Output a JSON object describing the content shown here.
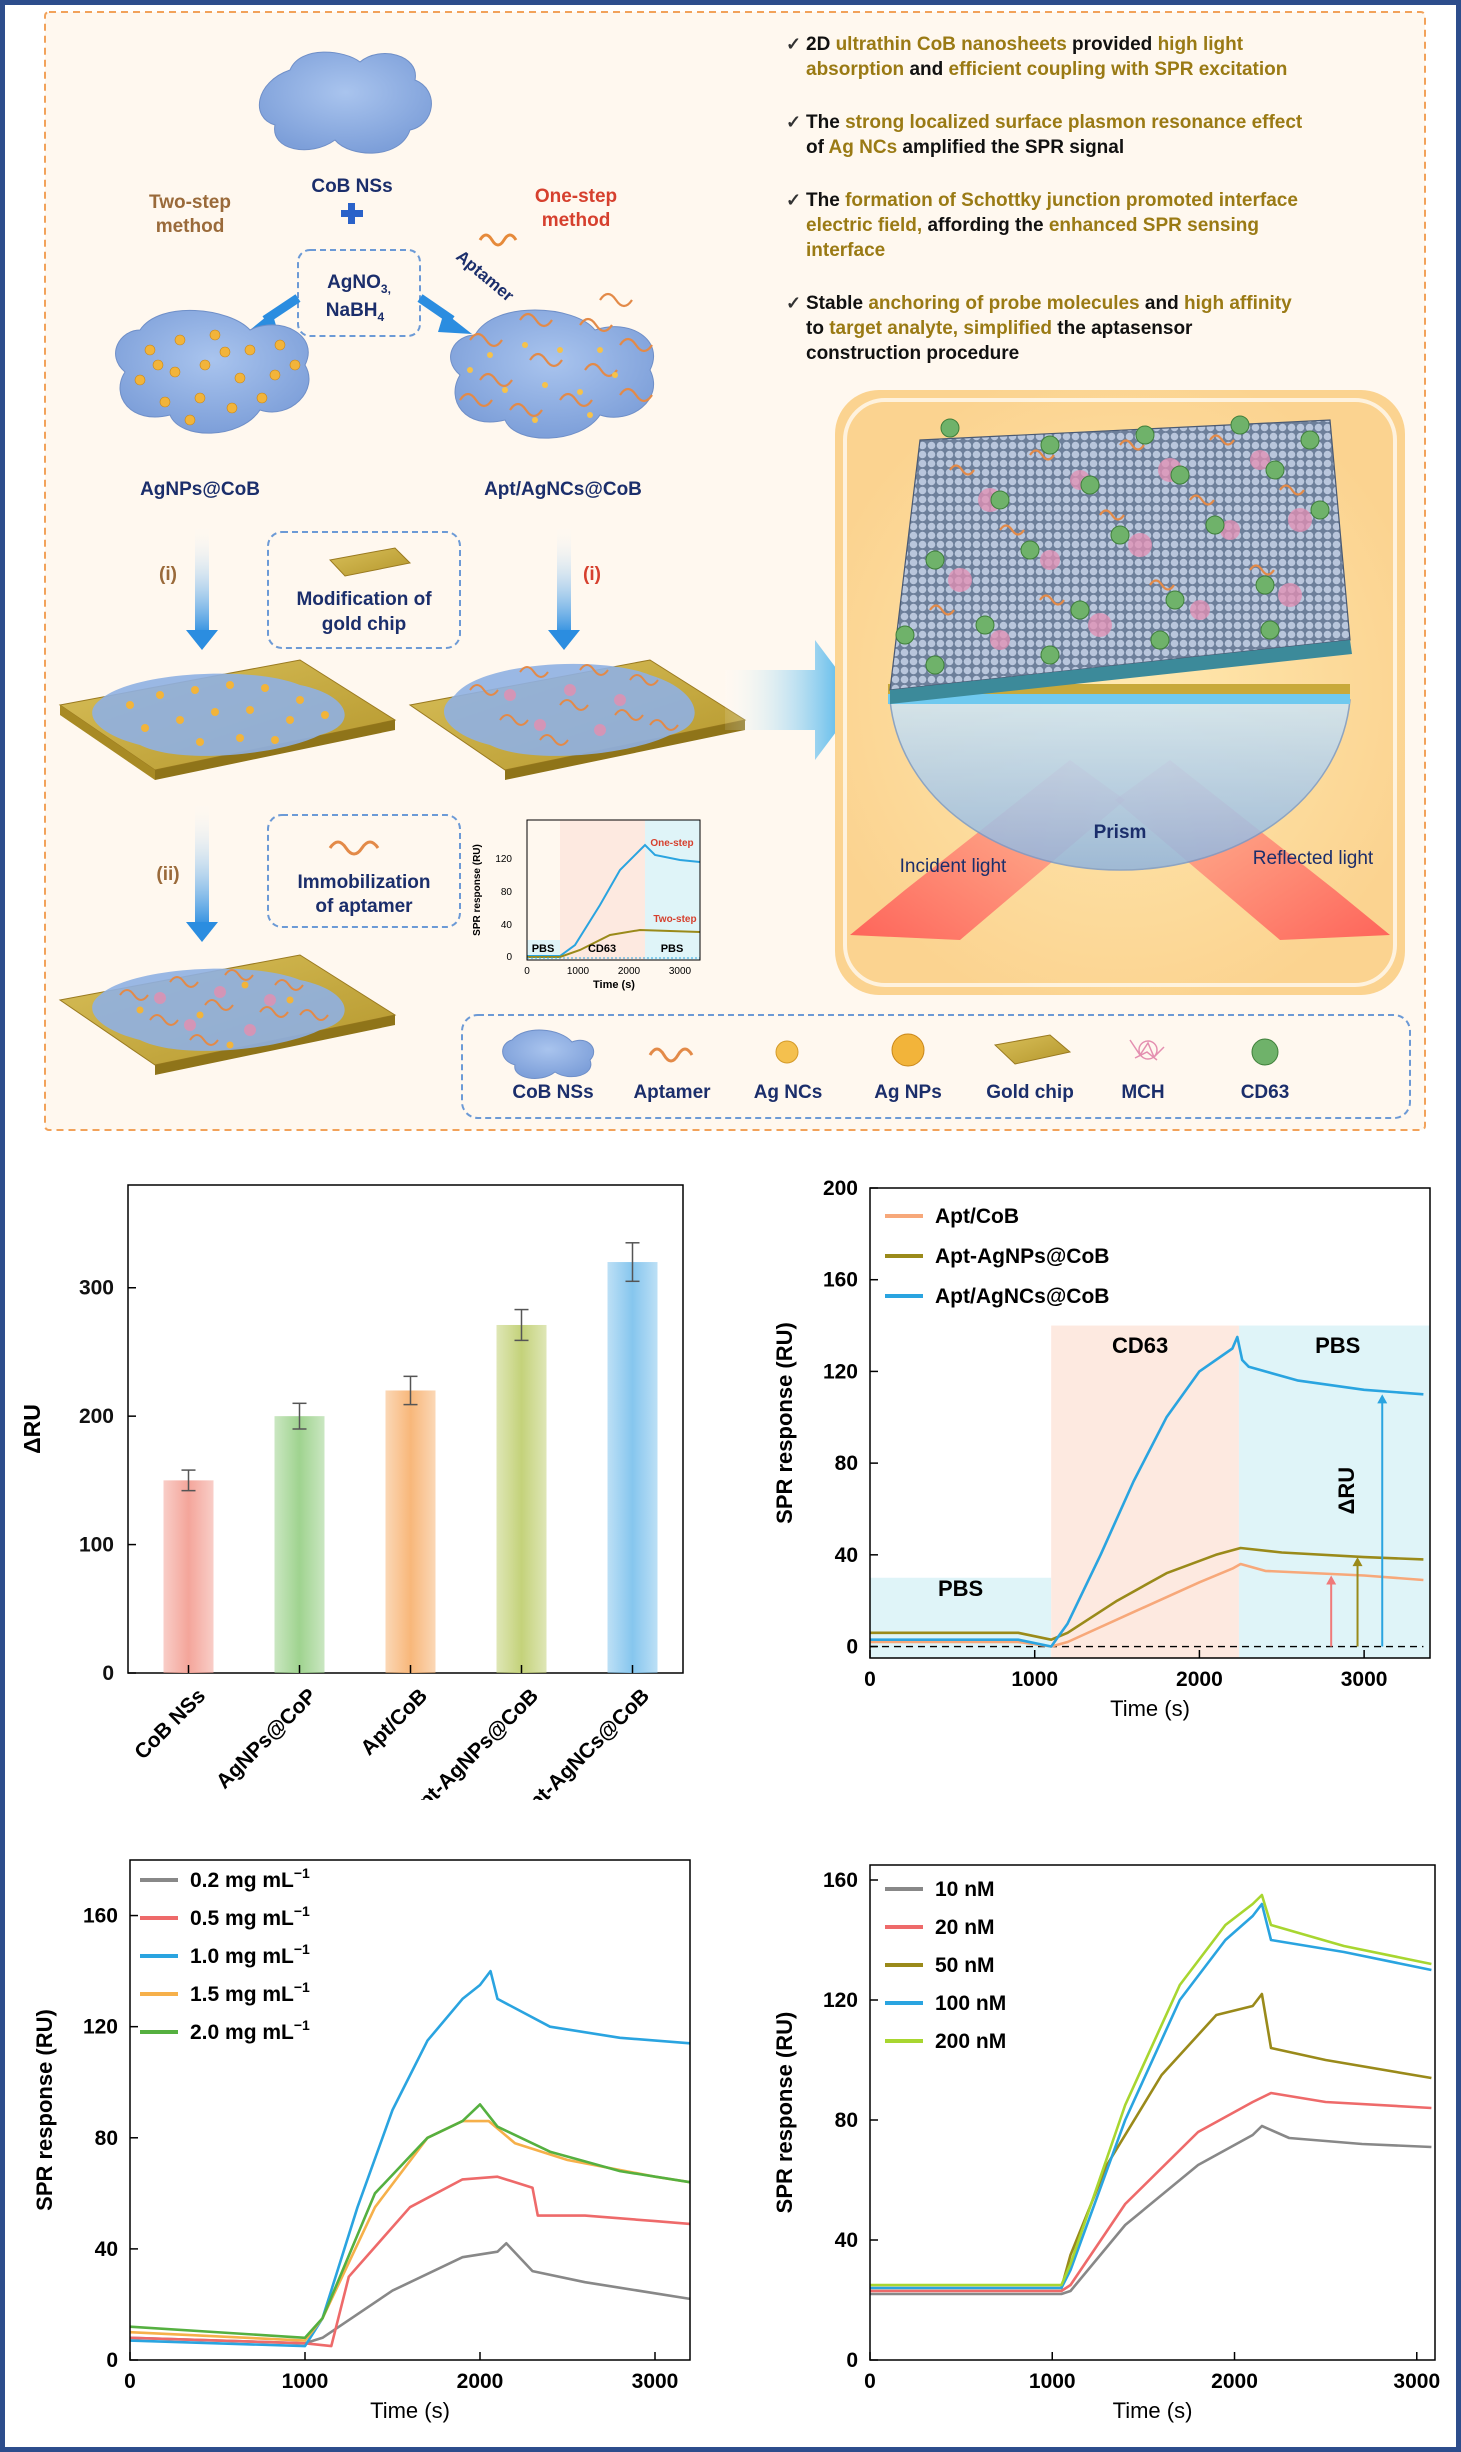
{
  "schematic": {
    "labels": {
      "cob_ns": "CoB NSs",
      "two_step_line1": "Two-step",
      "two_step_line2": "method",
      "one_step_line1": "One-step",
      "one_step_line2": "method",
      "reagent_line1": "AgNO",
      "reagent_sub1": "3,",
      "reagent_line2": "NaBH",
      "reagent_sub2": "4",
      "aptamer_arrow": "Aptamer",
      "agnps_cob": "AgNPs@CoB",
      "apt_agncs_cob": "Apt/AgNCs@CoB",
      "step_i_left": "(i)",
      "step_i_right": "(i)",
      "step_ii": "(ii)",
      "mod_line1": "Modification of",
      "mod_line2": "gold chip",
      "imm_line1": "Immobilization",
      "imm_line2": "of aptamer",
      "prism": "Prism",
      "incident": "Incident light",
      "reflected": "Reflected light"
    },
    "bullets": [
      {
        "parts": [
          [
            "2D ",
            "b"
          ],
          [
            "ultrathin CoB nanosheets",
            "h"
          ],
          [
            " provided ",
            "b"
          ],
          [
            "high light",
            "h"
          ]
        ]
      },
      {
        "parts": [
          [
            "absorption",
            "h"
          ],
          [
            " and ",
            "b"
          ],
          [
            "efficient coupling with SPR excitation",
            "h"
          ]
        ]
      },
      {
        "parts": [
          [
            "The ",
            "b"
          ],
          [
            "strong localized surface plasmon resonance effect",
            "h"
          ]
        ]
      },
      {
        "parts": [
          [
            "of ",
            "b"
          ],
          [
            "Ag NCs",
            "h"
          ],
          [
            " amplified the SPR signal",
            "b"
          ]
        ]
      },
      {
        "parts": [
          [
            "The ",
            "b"
          ],
          [
            "formation of Schottky junction promoted interface",
            "h"
          ]
        ]
      },
      {
        "parts": [
          [
            "electric field,",
            "h"
          ],
          [
            " affording the ",
            "b"
          ],
          [
            "enhanced SPR sensing",
            "h"
          ]
        ]
      },
      {
        "parts": [
          [
            "interface",
            "h"
          ]
        ]
      },
      {
        "parts": [
          [
            "Stable ",
            "b"
          ],
          [
            "anchoring of probe molecules",
            "h"
          ],
          [
            " and ",
            "b"
          ],
          [
            "high affinity",
            "h"
          ]
        ]
      },
      {
        "parts": [
          [
            "to ",
            "b"
          ],
          [
            "target analyte,",
            "h"
          ],
          [
            " ",
            "b"
          ],
          [
            "simplified",
            "h"
          ],
          [
            " the aptasensor",
            "b"
          ]
        ]
      },
      {
        "parts": [
          [
            "construction procedure",
            "b"
          ]
        ]
      }
    ],
    "legend": [
      "CoB NSs",
      "Aptamer",
      "Ag NCs",
      "Ag NPs",
      "Gold chip",
      "MCH",
      "CD63"
    ],
    "inset": {
      "ylabel": "SPR response (RU)",
      "xlabel": "Time (s)",
      "yticks": [
        "0",
        "40",
        "80",
        "120"
      ],
      "xticks": [
        "0",
        "1000",
        "2000",
        "3000"
      ],
      "one_step": "One-step",
      "two_step": "Two-step",
      "pbs1": "PBS",
      "cd63": "CD63",
      "pbs2": "PBS"
    }
  },
  "chart_data": [
    {
      "type": "bar",
      "categories": [
        "CoB NSs",
        "AgNPs@CoP",
        "Apt/CoB",
        "Apt-AgNPs@CoB",
        "Apt-AgNCs@CoB"
      ],
      "values": [
        150,
        200,
        220,
        271,
        320
      ],
      "errors": [
        8,
        10,
        11,
        12,
        15
      ],
      "colors": [
        "#f4a59a",
        "#9fd38f",
        "#f8b77a",
        "#c4d27a",
        "#86c6ee"
      ],
      "ylabel": "ΔRU",
      "ylim": [
        0,
        380
      ],
      "yticks": [
        0,
        100,
        200,
        300
      ]
    },
    {
      "type": "line",
      "xlabel": "Time (s)",
      "ylabel": "SPR response (RU)",
      "xlim": [
        0,
        3400
      ],
      "ylim": [
        -5,
        200
      ],
      "xticks": [
        0,
        1000,
        2000,
        3000
      ],
      "yticks": [
        0,
        40,
        80,
        120,
        160,
        200
      ],
      "legend_position": "top-left",
      "regions": [
        {
          "label": "PBS",
          "x": [
            0,
            1100
          ],
          "ytop": 30,
          "color": "#dff4f8"
        },
        {
          "label": "CD63",
          "x": [
            1100,
            2240
          ],
          "ytop": 140,
          "color": "#fde9e0"
        },
        {
          "label": "PBS",
          "x": [
            2240,
            3400
          ],
          "ytop": 140,
          "color": "#dff4f8"
        }
      ],
      "annotation": "ΔRU",
      "series": [
        {
          "name": "Apt/CoB",
          "color": "#f7a87a",
          "points": [
            [
              0,
              2
            ],
            [
              900,
              2
            ],
            [
              1100,
              0
            ],
            [
              1200,
              2
            ],
            [
              1600,
              15
            ],
            [
              2000,
              28
            ],
            [
              2200,
              34
            ],
            [
              2250,
              36
            ],
            [
              2400,
              33
            ],
            [
              3000,
              31
            ],
            [
              3360,
              29
            ]
          ]
        },
        {
          "name": "Apt-AgNPs@CoB",
          "color": "#9a8a1a",
          "points": [
            [
              0,
              6
            ],
            [
              900,
              6
            ],
            [
              1100,
              3
            ],
            [
              1200,
              6
            ],
            [
              1500,
              20
            ],
            [
              1800,
              32
            ],
            [
              2100,
              40
            ],
            [
              2250,
              43
            ],
            [
              2500,
              41
            ],
            [
              3000,
              39
            ],
            [
              3360,
              38
            ]
          ]
        },
        {
          "name": "Apt/AgNCs@CoB",
          "color": "#2aa4e0",
          "points": [
            [
              0,
              3
            ],
            [
              900,
              3
            ],
            [
              1100,
              0
            ],
            [
              1200,
              10
            ],
            [
              1400,
              40
            ],
            [
              1600,
              72
            ],
            [
              1800,
              100
            ],
            [
              2000,
              120
            ],
            [
              2200,
              130
            ],
            [
              2230,
              135
            ],
            [
              2260,
              125
            ],
            [
              2300,
              122
            ],
            [
              2600,
              116
            ],
            [
              3000,
              112
            ],
            [
              3360,
              110
            ]
          ]
        }
      ]
    },
    {
      "type": "line",
      "xlabel": "Time (s)",
      "ylabel": "SPR response (RU)",
      "xlim": [
        0,
        3200
      ],
      "ylim": [
        0,
        180
      ],
      "xticks": [
        0,
        1000,
        2000,
        3000
      ],
      "yticks": [
        0,
        40,
        80,
        120,
        160
      ],
      "legend_position": "top-left",
      "series": [
        {
          "name": "0.2 mg mL",
          "sup": "−1",
          "color": "#888888",
          "points": [
            [
              0,
              8
            ],
            [
              1000,
              6
            ],
            [
              1100,
              8
            ],
            [
              1500,
              25
            ],
            [
              1900,
              37
            ],
            [
              2100,
              39
            ],
            [
              2150,
              42
            ],
            [
              2300,
              32
            ],
            [
              2600,
              28
            ],
            [
              3000,
              24
            ],
            [
              3200,
              22
            ]
          ]
        },
        {
          "name": "0.5 mg mL",
          "sup": "−1",
          "color": "#ee6a6a",
          "points": [
            [
              0,
              8
            ],
            [
              1000,
              6
            ],
            [
              1150,
              5
            ],
            [
              1250,
              30
            ],
            [
              1600,
              55
            ],
            [
              1900,
              65
            ],
            [
              2100,
              66
            ],
            [
              2300,
              62
            ],
            [
              2330,
              52
            ],
            [
              2600,
              52
            ],
            [
              3000,
              50
            ],
            [
              3200,
              49
            ]
          ]
        },
        {
          "name": "1.0 mg mL",
          "sup": "−1",
          "color": "#2aa4e0",
          "points": [
            [
              0,
              7
            ],
            [
              1000,
              5
            ],
            [
              1100,
              15
            ],
            [
              1300,
              55
            ],
            [
              1500,
              90
            ],
            [
              1700,
              115
            ],
            [
              1900,
              130
            ],
            [
              2000,
              135
            ],
            [
              2060,
              140
            ],
            [
              2100,
              130
            ],
            [
              2400,
              120
            ],
            [
              2800,
              116
            ],
            [
              3200,
              114
            ]
          ]
        },
        {
          "name": "1.5 mg mL",
          "sup": "−1",
          "color": "#f6b04a",
          "points": [
            [
              0,
              10
            ],
            [
              1000,
              7
            ],
            [
              1100,
              15
            ],
            [
              1400,
              55
            ],
            [
              1700,
              80
            ],
            [
              1900,
              86
            ],
            [
              2050,
              86
            ],
            [
              2200,
              78
            ],
            [
              2500,
              72
            ],
            [
              3000,
              66
            ],
            [
              3200,
              64
            ]
          ]
        },
        {
          "name": "2.0 mg mL",
          "sup": "−1",
          "color": "#55b040",
          "points": [
            [
              0,
              12
            ],
            [
              1000,
              8
            ],
            [
              1100,
              15
            ],
            [
              1400,
              60
            ],
            [
              1700,
              80
            ],
            [
              1900,
              86
            ],
            [
              2000,
              92
            ],
            [
              2100,
              84
            ],
            [
              2400,
              75
            ],
            [
              2800,
              68
            ],
            [
              3200,
              64
            ]
          ]
        }
      ]
    },
    {
      "type": "line",
      "xlabel": "Time (s)",
      "ylabel": "SPR response (RU)",
      "xlim": [
        0,
        3100
      ],
      "ylim": [
        0,
        165
      ],
      "xticks": [
        0,
        1000,
        2000,
        3000
      ],
      "yticks": [
        0,
        40,
        80,
        120,
        160
      ],
      "legend_position": "top-left",
      "series": [
        {
          "name": "10 nM",
          "color": "#888888",
          "points": [
            [
              0,
              22
            ],
            [
              1050,
              22
            ],
            [
              1100,
              23
            ],
            [
              1400,
              45
            ],
            [
              1800,
              65
            ],
            [
              2100,
              75
            ],
            [
              2150,
              78
            ],
            [
              2300,
              74
            ],
            [
              2700,
              72
            ],
            [
              3080,
              71
            ]
          ]
        },
        {
          "name": "20 nM",
          "color": "#ee6a6a",
          "points": [
            [
              0,
              23
            ],
            [
              1050,
              23
            ],
            [
              1100,
              25
            ],
            [
              1400,
              52
            ],
            [
              1800,
              76
            ],
            [
              2100,
              86
            ],
            [
              2200,
              89
            ],
            [
              2500,
              86
            ],
            [
              3080,
              84
            ]
          ]
        },
        {
          "name": "50 nM",
          "color": "#9a8a1a",
          "points": [
            [
              0,
              24
            ],
            [
              1050,
              24
            ],
            [
              1100,
              35
            ],
            [
              1300,
              65
            ],
            [
              1600,
              95
            ],
            [
              1900,
              115
            ],
            [
              2100,
              118
            ],
            [
              2150,
              122
            ],
            [
              2200,
              104
            ],
            [
              2500,
              100
            ],
            [
              3080,
              94
            ]
          ]
        },
        {
          "name": "100 nM",
          "color": "#2aa4e0",
          "points": [
            [
              0,
              24
            ],
            [
              1050,
              24
            ],
            [
              1100,
              30
            ],
            [
              1400,
              80
            ],
            [
              1700,
              120
            ],
            [
              1950,
              140
            ],
            [
              2100,
              148
            ],
            [
              2150,
              152
            ],
            [
              2200,
              140
            ],
            [
              2600,
              136
            ],
            [
              3080,
              130
            ]
          ]
        },
        {
          "name": "200 nM",
          "color": "#a8d630",
          "points": [
            [
              0,
              25
            ],
            [
              1050,
              25
            ],
            [
              1100,
              32
            ],
            [
              1400,
              85
            ],
            [
              1700,
              125
            ],
            [
              1950,
              145
            ],
            [
              2100,
              152
            ],
            [
              2150,
              155
            ],
            [
              2200,
              145
            ],
            [
              2600,
              138
            ],
            [
              3080,
              132
            ]
          ]
        }
      ]
    }
  ]
}
